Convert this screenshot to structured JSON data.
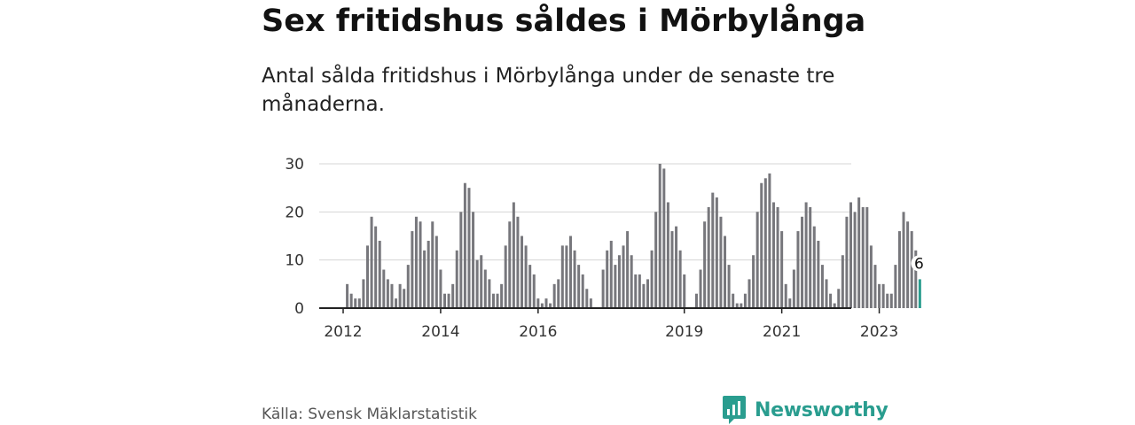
{
  "title": "Sex fritidshus såldes i Mörbylånga",
  "subtitle": "Antal sålda fritidshus i Mörbylånga under de senaste tre månaderna.",
  "source": "Källa: Svensk Mäklarstatistik",
  "brand": {
    "name": "Newsworthy",
    "logo_icon": "bar-chart-icon"
  },
  "colors": {
    "bar": "#77777c",
    "highlight": "#2a9d8f",
    "grid": "#d4d4d4",
    "axis": "#222222",
    "text": "#333333"
  },
  "chart_data": {
    "type": "bar",
    "ylim": [
      0,
      30
    ],
    "yticks": [
      0,
      10,
      20,
      30
    ],
    "grid": true,
    "x_start": "2012-01",
    "xticks": [
      {
        "label": "2012",
        "index": 0
      },
      {
        "label": "2014",
        "index": 24
      },
      {
        "label": "2016",
        "index": 48
      },
      {
        "label": "2019",
        "index": 84
      },
      {
        "label": "2021",
        "index": 108
      },
      {
        "label": "2023",
        "index": 132
      }
    ],
    "values": [
      0,
      5,
      3,
      2,
      2,
      6,
      13,
      19,
      17,
      14,
      8,
      6,
      5,
      2,
      5,
      4,
      9,
      16,
      19,
      18,
      12,
      14,
      18,
      15,
      8,
      3,
      3,
      5,
      12,
      20,
      26,
      25,
      20,
      10,
      11,
      8,
      6,
      3,
      3,
      5,
      13,
      18,
      22,
      19,
      15,
      13,
      9,
      7,
      2,
      1,
      2,
      1,
      5,
      6,
      13,
      13,
      15,
      12,
      9,
      7,
      4,
      2,
      0,
      0,
      8,
      12,
      14,
      9,
      11,
      13,
      16,
      11,
      7,
      7,
      5,
      6,
      12,
      20,
      30,
      29,
      22,
      16,
      17,
      12,
      7,
      0,
      0,
      3,
      8,
      18,
      21,
      24,
      23,
      19,
      15,
      9,
      3,
      1,
      1,
      3,
      6,
      11,
      20,
      26,
      27,
      28,
      22,
      21,
      16,
      5,
      2,
      8,
      16,
      19,
      22,
      21,
      17,
      14,
      9,
      6,
      3,
      1,
      4,
      11,
      19,
      22,
      20,
      23,
      21,
      21,
      13,
      9,
      5,
      5,
      3,
      3,
      9,
      16,
      20,
      18,
      16,
      12,
      6
    ],
    "highlight_index": 142,
    "highlight_label": "6"
  }
}
